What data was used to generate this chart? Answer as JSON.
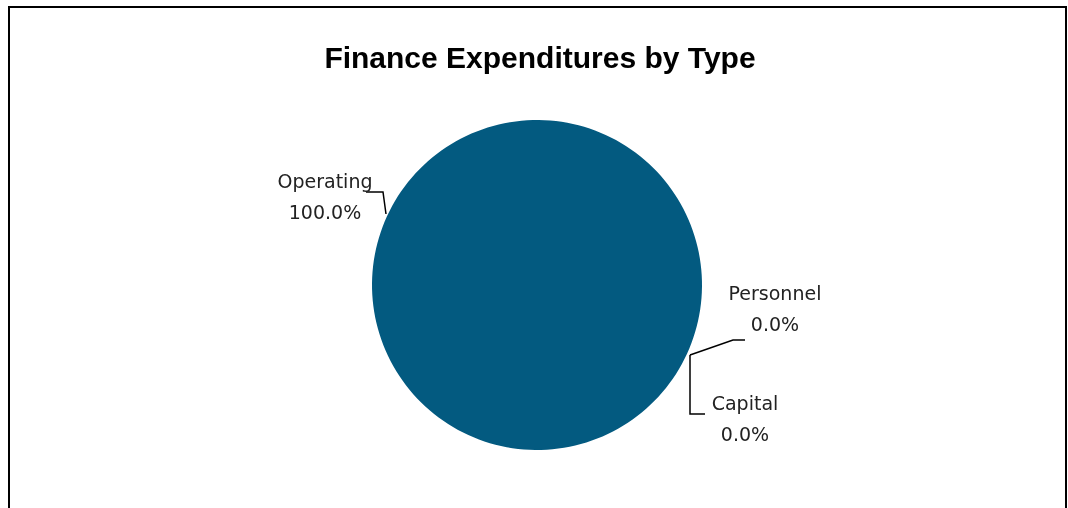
{
  "chart_data": {
    "type": "pie",
    "title": "Finance Expenditures by Type",
    "categories": [
      "Operating",
      "Personnel",
      "Capital"
    ],
    "values": [
      100,
      0,
      0
    ],
    "colors": [
      "#035a80",
      "#6f9a3c",
      "#d38a2c"
    ],
    "value_labels": [
      "100.0%",
      "0.0%",
      "0.0%"
    ]
  }
}
